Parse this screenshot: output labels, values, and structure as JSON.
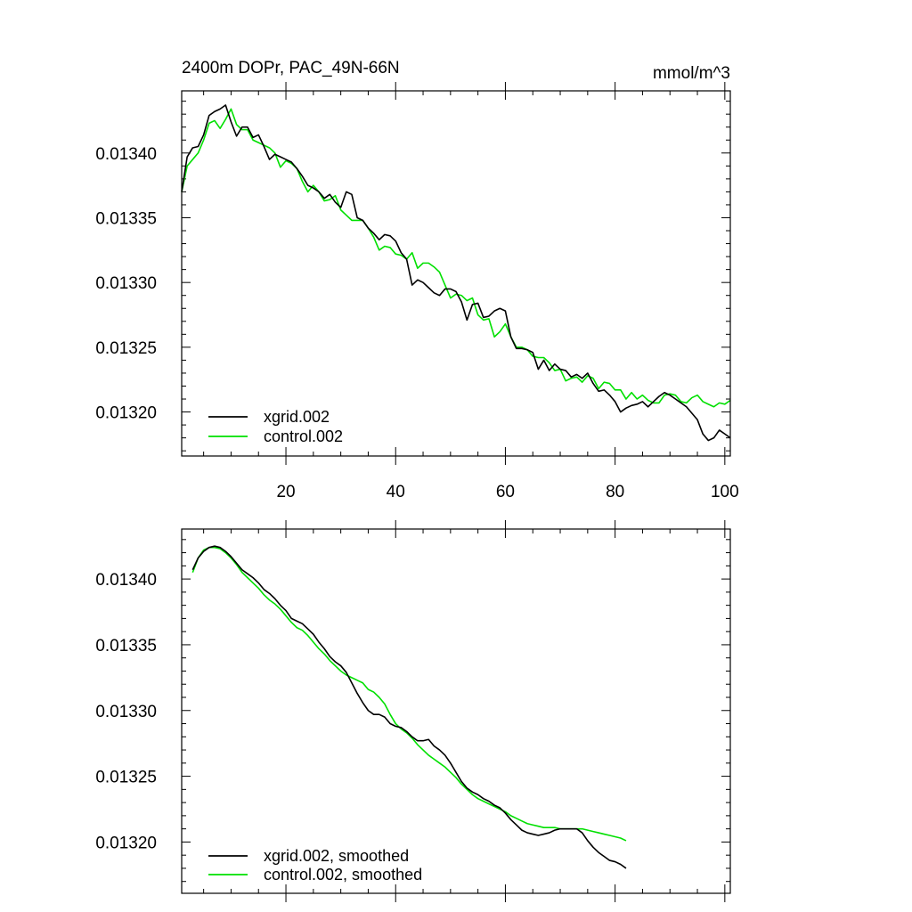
{
  "colors": {
    "xgrid": "#000000",
    "control": "#00e000",
    "axis": "#000000"
  },
  "chart_data": [
    {
      "type": "line",
      "title": "2400m DOPr, PAC_49N-66N",
      "units": "mmol/m^3",
      "xlim": [
        1,
        101
      ],
      "ylim": [
        0.013166,
        0.013448
      ],
      "x_ticks": [
        20,
        40,
        60,
        80,
        100
      ],
      "x_tick_labels": [
        "20",
        "40",
        "60",
        "80",
        "100"
      ],
      "y_ticks": [
        0.0132,
        0.01325,
        0.0133,
        0.01335,
        0.0134
      ],
      "y_tick_labels": [
        "0.01320",
        "0.01325",
        "0.01330",
        "0.01335",
        "0.01340"
      ],
      "legend_position": "bottom-left",
      "x_start": 1,
      "series": [
        {
          "name": "xgrid.002",
          "color_key": "xgrid",
          "values": [
            0.01337,
            0.013397,
            0.013404,
            0.013405,
            0.013414,
            0.013429,
            0.013432,
            0.013434,
            0.013437,
            0.013424,
            0.013413,
            0.01342,
            0.01342,
            0.013412,
            0.013414,
            0.013405,
            0.013395,
            0.013399,
            0.013397,
            0.013395,
            0.013393,
            0.013388,
            0.013382,
            0.013375,
            0.013373,
            0.01337,
            0.013365,
            0.013368,
            0.013362,
            0.013358,
            0.01337,
            0.013368,
            0.01335,
            0.013348,
            0.013342,
            0.013338,
            0.013333,
            0.013337,
            0.013336,
            0.013332,
            0.013323,
            0.013318,
            0.013298,
            0.013302,
            0.0133,
            0.013296,
            0.013292,
            0.01329,
            0.013295,
            0.013295,
            0.013293,
            0.013285,
            0.013271,
            0.013283,
            0.013284,
            0.013273,
            0.013274,
            0.013278,
            0.01328,
            0.013278,
            0.013258,
            0.013249,
            0.013249,
            0.013248,
            0.013246,
            0.013233,
            0.01324,
            0.013232,
            0.013237,
            0.013233,
            0.013232,
            0.013227,
            0.013229,
            0.013226,
            0.01323,
            0.013222,
            0.013216,
            0.013217,
            0.013213,
            0.013208,
            0.0132,
            0.013203,
            0.013205,
            0.013206,
            0.013208,
            0.013204,
            0.013208,
            0.013212,
            0.013215,
            0.013213,
            0.01321,
            0.013207,
            0.013204,
            0.013199,
            0.013194,
            0.013183,
            0.013178,
            0.01318,
            0.013186,
            0.013183,
            0.01318
          ]
        },
        {
          "name": "control.002",
          "color_key": "control",
          "values": [
            0.01337,
            0.01339,
            0.013395,
            0.0134,
            0.01341,
            0.013423,
            0.013425,
            0.013419,
            0.013426,
            0.013434,
            0.013422,
            0.013418,
            0.013418,
            0.01341,
            0.013408,
            0.013406,
            0.013404,
            0.0134,
            0.013389,
            0.013394,
            0.013392,
            0.013388,
            0.013378,
            0.01337,
            0.013375,
            0.01337,
            0.013363,
            0.013364,
            0.013367,
            0.013356,
            0.013352,
            0.013348,
            0.013348,
            0.013348,
            0.013342,
            0.013335,
            0.013325,
            0.013328,
            0.013327,
            0.013322,
            0.013321,
            0.013318,
            0.013323,
            0.013311,
            0.013315,
            0.013315,
            0.013312,
            0.013308,
            0.013298,
            0.013288,
            0.013291,
            0.01329,
            0.013286,
            0.013288,
            0.013275,
            0.013271,
            0.013272,
            0.013258,
            0.013262,
            0.013268,
            0.013258,
            0.01325,
            0.01325,
            0.013248,
            0.013243,
            0.013242,
            0.013242,
            0.013238,
            0.013232,
            0.013233,
            0.013224,
            0.013226,
            0.013227,
            0.013223,
            0.013228,
            0.013226,
            0.013218,
            0.013223,
            0.013222,
            0.013217,
            0.013217,
            0.01321,
            0.013215,
            0.01321,
            0.013213,
            0.013209,
            0.013207,
            0.013207,
            0.013213,
            0.013214,
            0.013213,
            0.013208,
            0.013207,
            0.013211,
            0.013213,
            0.013208,
            0.013206,
            0.013204,
            0.013207,
            0.013206,
            0.013209
          ]
        }
      ]
    },
    {
      "type": "line",
      "title": "",
      "units": "",
      "xlim": [
        1,
        101
      ],
      "ylim": [
        0.013161,
        0.013438
      ],
      "x_ticks": [
        20,
        40,
        60,
        80,
        100
      ],
      "x_tick_labels": [],
      "y_ticks": [
        0.0132,
        0.01325,
        0.0133,
        0.01335,
        0.0134
      ],
      "y_tick_labels": [
        "0.01320",
        "0.01325",
        "0.01330",
        "0.01335",
        "0.01340"
      ],
      "legend_position": "bottom-left",
      "x_start": 3,
      "series": [
        {
          "name": "xgrid.002, smoothed",
          "color_key": "xgrid",
          "values": [
            0.013407,
            0.013416,
            0.013421,
            0.013424,
            0.013425,
            0.013424,
            0.013421,
            0.013417,
            0.013412,
            0.013407,
            0.013404,
            0.013401,
            0.013397,
            0.013392,
            0.013389,
            0.013385,
            0.01338,
            0.013376,
            0.01337,
            0.013368,
            0.013366,
            0.013362,
            0.013358,
            0.013352,
            0.013347,
            0.013341,
            0.013337,
            0.013334,
            0.013329,
            0.013321,
            0.013313,
            0.013306,
            0.0133,
            0.013297,
            0.013297,
            0.013295,
            0.01329,
            0.013288,
            0.013287,
            0.013284,
            0.01328,
            0.013277,
            0.013277,
            0.013278,
            0.013273,
            0.01327,
            0.013266,
            0.01326,
            0.013253,
            0.013246,
            0.013241,
            0.013238,
            0.013236,
            0.013233,
            0.013231,
            0.013228,
            0.013226,
            0.013222,
            0.013217,
            0.013213,
            0.013209,
            0.013207,
            0.013206,
            0.013205,
            0.013206,
            0.013207,
            0.013209,
            0.01321,
            0.01321,
            0.01321,
            0.01321,
            0.013207,
            0.013201,
            0.013196,
            0.013192,
            0.013189,
            0.013186,
            0.013185,
            0.013183,
            0.01318
          ]
        },
        {
          "name": "control.002, smoothed",
          "color_key": "control",
          "values": [
            0.013405,
            0.013416,
            0.013422,
            0.013424,
            0.013424,
            0.013423,
            0.01342,
            0.013416,
            0.013411,
            0.013405,
            0.013401,
            0.013397,
            0.013393,
            0.013388,
            0.013384,
            0.013381,
            0.013377,
            0.013372,
            0.013367,
            0.013363,
            0.013361,
            0.013357,
            0.013352,
            0.013347,
            0.013343,
            0.013338,
            0.013334,
            0.01333,
            0.013327,
            0.013325,
            0.013323,
            0.013321,
            0.013316,
            0.013314,
            0.01331,
            0.013305,
            0.013297,
            0.01329,
            0.013286,
            0.013283,
            0.013279,
            0.013274,
            0.01327,
            0.013266,
            0.013263,
            0.01326,
            0.013257,
            0.013253,
            0.013249,
            0.013244,
            0.01324,
            0.013236,
            0.013233,
            0.013231,
            0.013229,
            0.013227,
            0.013225,
            0.013223,
            0.01322,
            0.013218,
            0.013216,
            0.013214,
            0.013213,
            0.013212,
            0.013211,
            0.013211,
            0.013211,
            0.01321,
            0.01321,
            0.01321,
            0.01321,
            0.01321,
            0.013209,
            0.013208,
            0.013207,
            0.013206,
            0.013205,
            0.013204,
            0.013203,
            0.013201
          ]
        }
      ]
    }
  ]
}
